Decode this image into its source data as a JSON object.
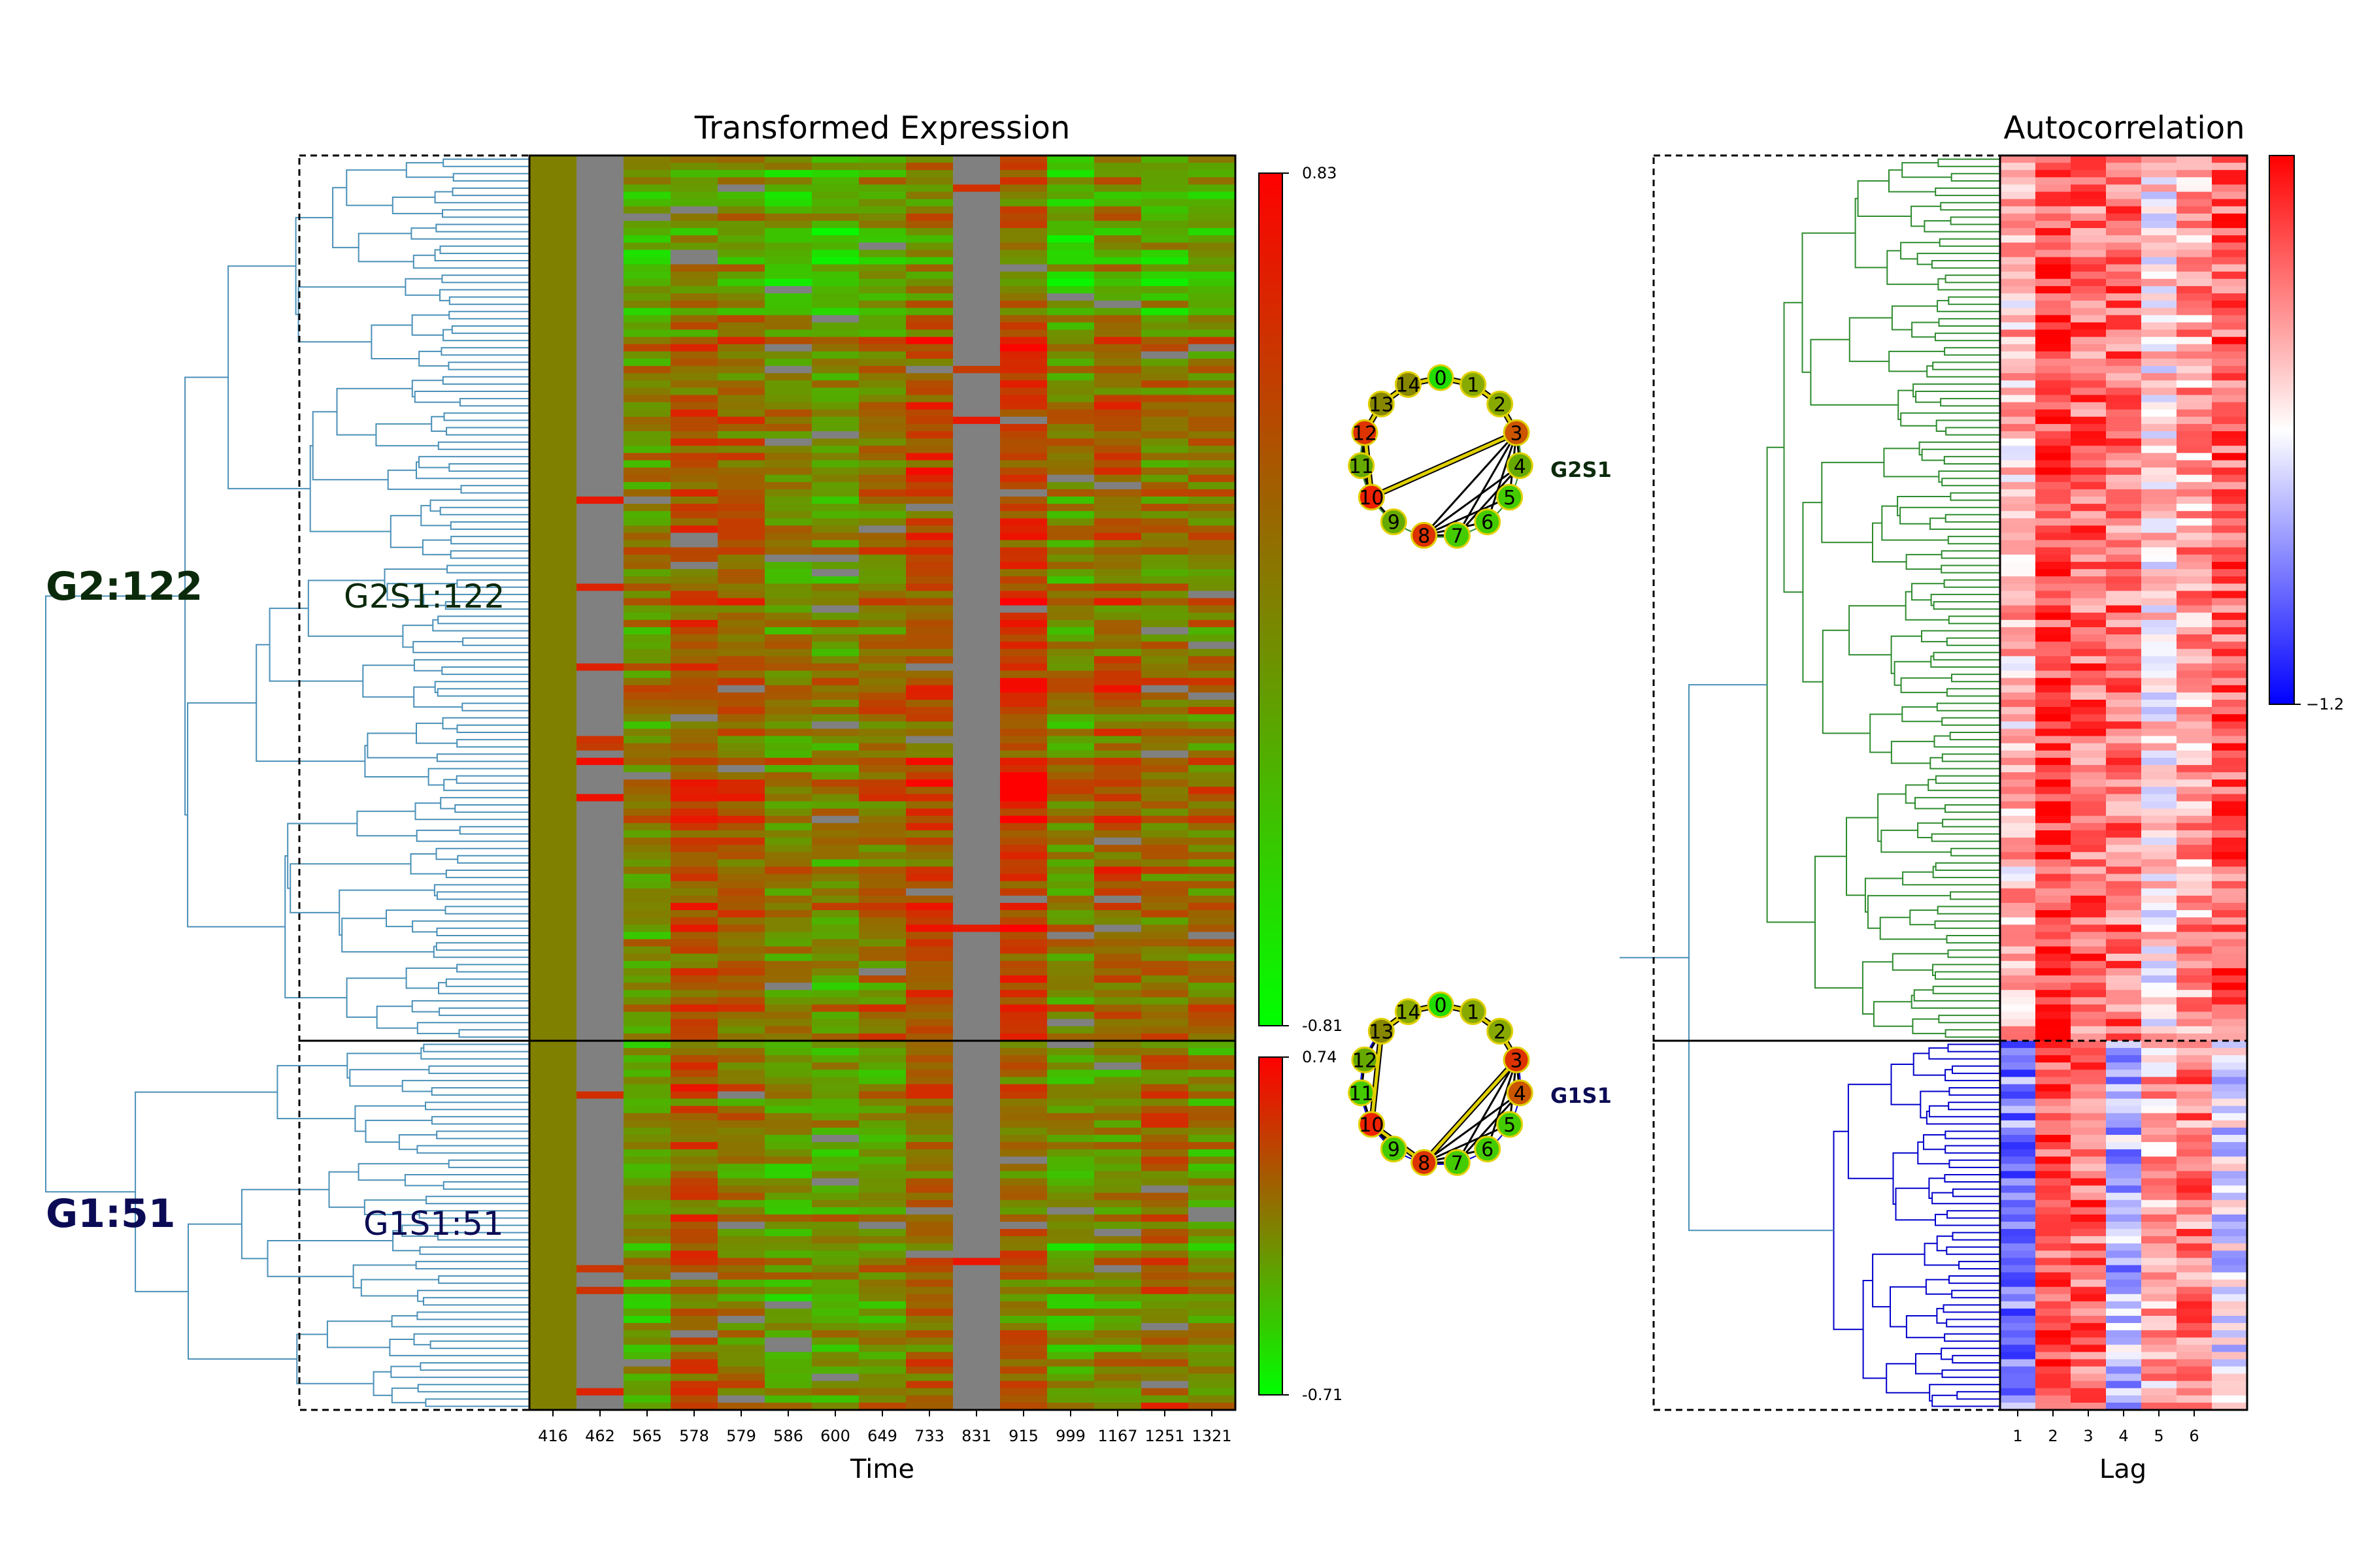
{
  "chart_data": [
    {
      "type": "heatmap",
      "title": "Transformed Expression",
      "xlabel": "Time",
      "x_ticks": [
        "416",
        "462",
        "565",
        "578",
        "579",
        "586",
        "600",
        "649",
        "733",
        "831",
        "915",
        "999",
        "1167",
        "1251",
        "1321"
      ],
      "missing_columns": [
        "462",
        "831"
      ],
      "colormap": [
        "#00ff00",
        "#808000",
        "#ff0000"
      ],
      "missing_color": "#808080",
      "groups": [
        {
          "cluster_label": "G2:122",
          "subcluster_label": "G2S1:122",
          "rows": 122,
          "colorbar": {
            "max_label": "0.83",
            "min_label": "-0.81"
          },
          "tree_color": "#4a90b8",
          "label_color": "#0b2a0b"
        },
        {
          "cluster_label": "G1:51",
          "subcluster_label": "G1S1:51",
          "rows": 51,
          "colorbar": {
            "max_label": "0.74",
            "min_label": "-0.71"
          },
          "tree_color": "#4a90b8",
          "label_color": "#0b0b55"
        }
      ]
    },
    {
      "type": "heatmap",
      "title": "Autocorrelation",
      "xlabel": "Lag",
      "x_ticks": [
        "1",
        "2",
        "3",
        "4",
        "5",
        "6"
      ],
      "colormap": [
        "#0000ff",
        "#ffffff",
        "#ff0000"
      ],
      "colorbar": {
        "min_label": "−1.2"
      },
      "tree_colors": {
        "G2": "#2e8b2e",
        "G1": "#0000cc",
        "root": "#4a90b8"
      }
    },
    {
      "type": "network",
      "name": "G2S1",
      "nodes": [
        "0",
        "1",
        "2",
        "3",
        "4",
        "5",
        "6",
        "7",
        "8",
        "9",
        "10",
        "11",
        "12",
        "13",
        "14"
      ],
      "node_colors": [
        "#22dd00",
        "#88aa00",
        "#88aa00",
        "#cc5500",
        "#66aa00",
        "#44cc00",
        "#44cc00",
        "#44cc00",
        "#dd3300",
        "#66aa00",
        "#ee2200",
        "#66aa00",
        "#dd3300",
        "#888800",
        "#888800"
      ],
      "highlighted_edges": [
        [
          "0",
          "1"
        ],
        [
          "1",
          "2"
        ],
        [
          "2",
          "3"
        ],
        [
          "3",
          "10"
        ],
        [
          "10",
          "12"
        ],
        [
          "12",
          "13"
        ],
        [
          "13",
          "14"
        ],
        [
          "14",
          "0"
        ]
      ],
      "other_edges": [
        [
          "3",
          "4"
        ],
        [
          "3",
          "5"
        ],
        [
          "3",
          "6"
        ],
        [
          "3",
          "7"
        ],
        [
          "3",
          "8"
        ],
        [
          "4",
          "7"
        ],
        [
          "4",
          "8"
        ],
        [
          "5",
          "8"
        ],
        [
          "6",
          "8"
        ],
        [
          "7",
          "8"
        ],
        [
          "9",
          "10"
        ],
        [
          "10",
          "11"
        ],
        [
          "11",
          "12"
        ]
      ],
      "ring_color": "#2e8b2e",
      "label_color": "#0b2a0b"
    },
    {
      "type": "network",
      "name": "G1S1",
      "nodes": [
        "0",
        "1",
        "2",
        "3",
        "4",
        "5",
        "6",
        "7",
        "8",
        "9",
        "10",
        "11",
        "12",
        "13",
        "14"
      ],
      "node_colors": [
        "#22dd00",
        "#88aa00",
        "#88aa00",
        "#dd3300",
        "#cc5500",
        "#44cc00",
        "#44cc00",
        "#44cc00",
        "#dd3300",
        "#44cc00",
        "#ee2200",
        "#44cc00",
        "#66aa00",
        "#888800",
        "#88aa00"
      ],
      "highlighted_edges": [
        [
          "0",
          "1"
        ],
        [
          "1",
          "2"
        ],
        [
          "2",
          "3"
        ],
        [
          "3",
          "8"
        ],
        [
          "8",
          "10"
        ],
        [
          "10",
          "13"
        ],
        [
          "13",
          "14"
        ],
        [
          "14",
          "0"
        ]
      ],
      "other_edges": [
        [
          "3",
          "4"
        ],
        [
          "3",
          "5"
        ],
        [
          "3",
          "6"
        ],
        [
          "3",
          "7"
        ],
        [
          "4",
          "7"
        ],
        [
          "4",
          "8"
        ],
        [
          "5",
          "8"
        ],
        [
          "6",
          "8"
        ],
        [
          "7",
          "8"
        ],
        [
          "9",
          "10"
        ],
        [
          "10",
          "11"
        ],
        [
          "11",
          "12"
        ],
        [
          "12",
          "13"
        ]
      ],
      "ring_color": "#0000cc",
      "label_color": "#0b0b55"
    }
  ]
}
